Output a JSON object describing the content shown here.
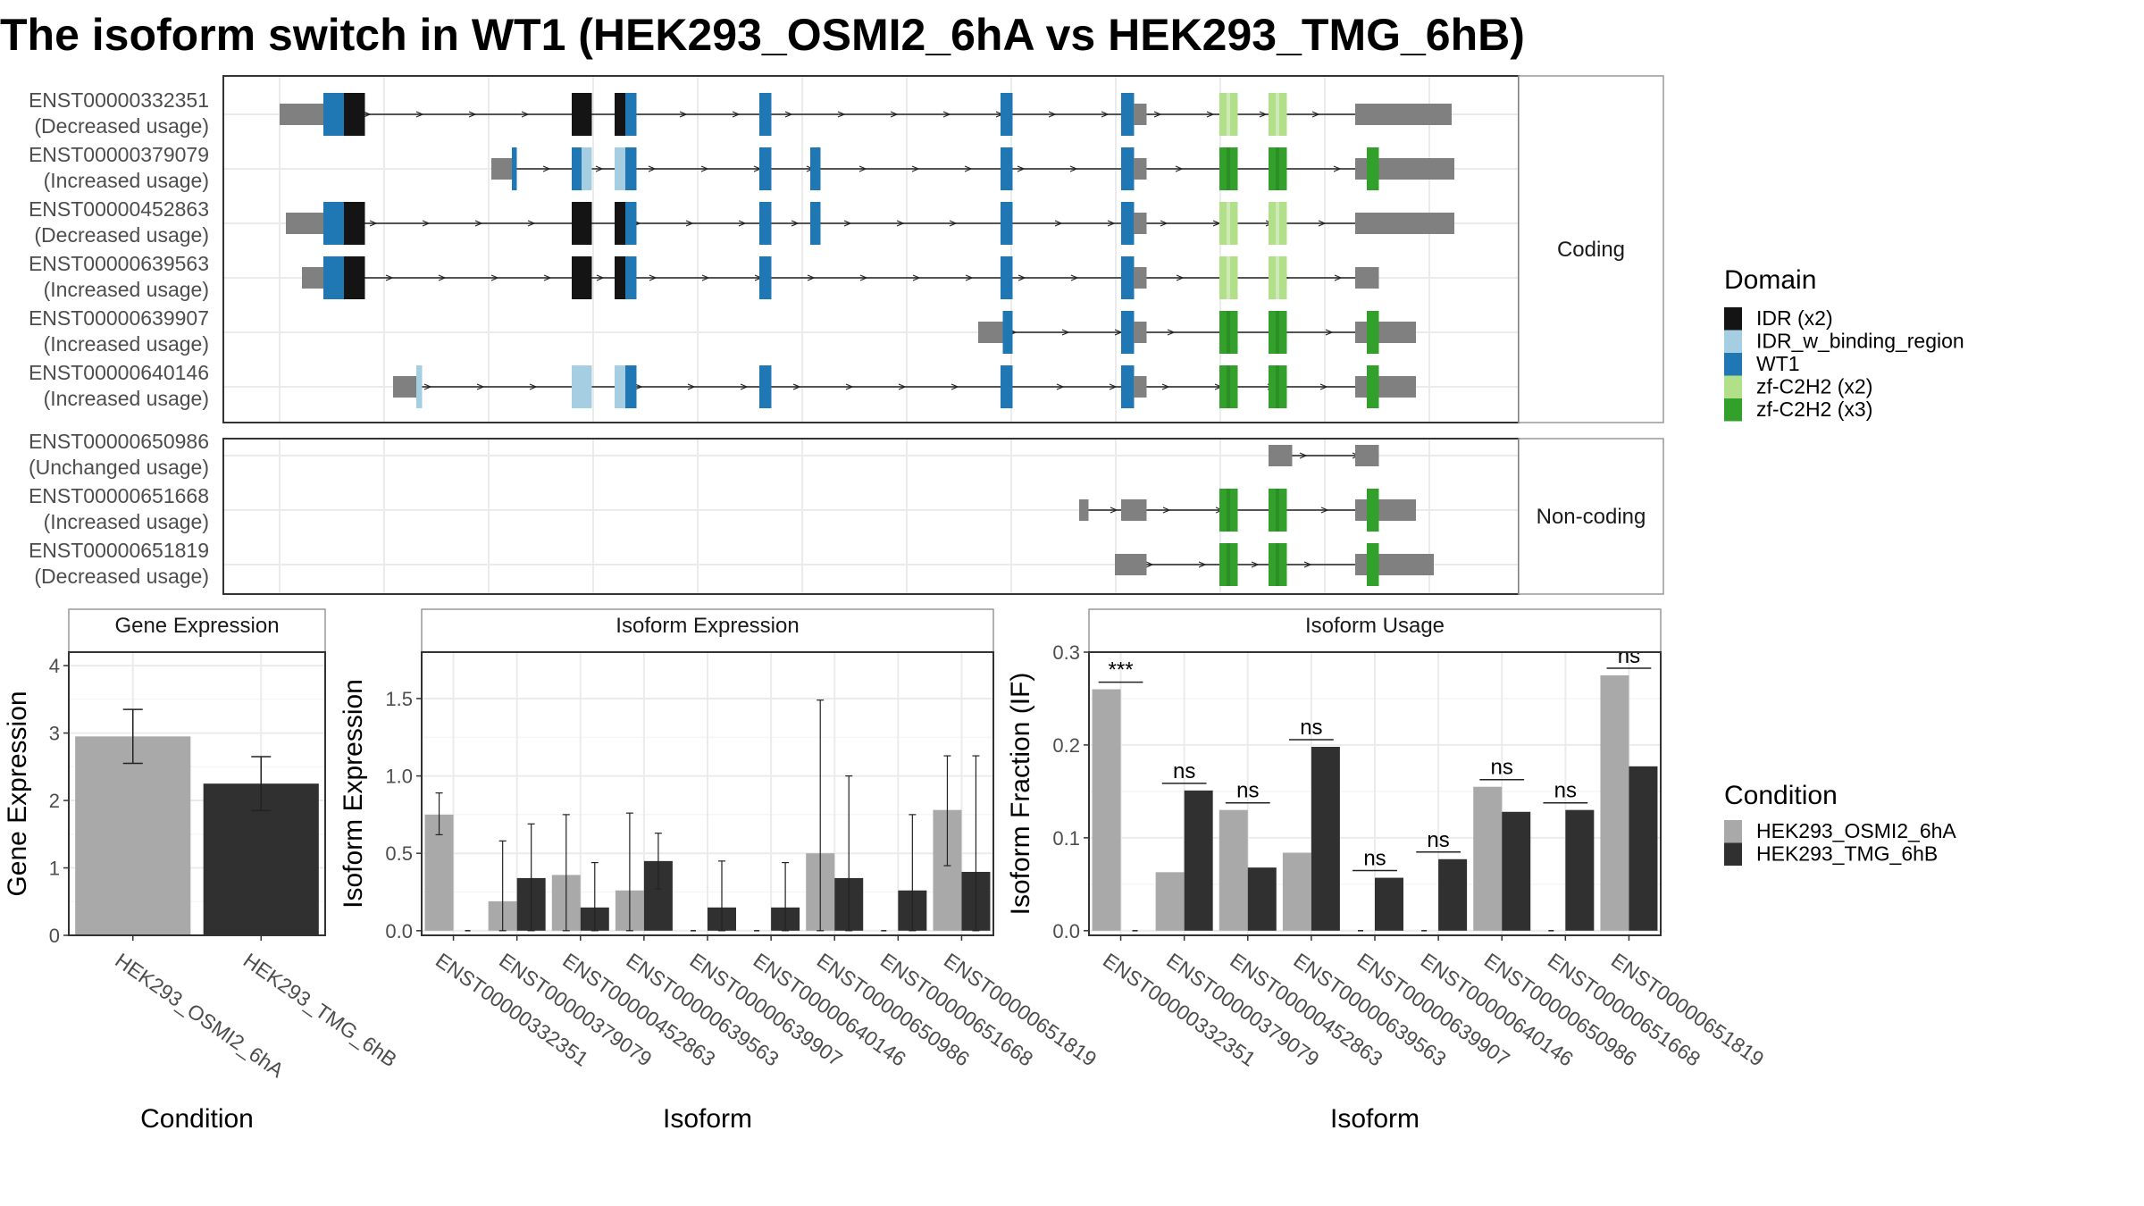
{
  "title": "The isoform switch in WT1 (HEK293_OSMI2_6hA vs HEK293_TMG_6hB)",
  "colors": {
    "IDR (x2)": "#141414",
    "IDR_w_binding_region": "#a6cee3",
    "WT1": "#1f78b4",
    "zf-C2H2 (x2)": "#b2df8a",
    "zf-C2H2 (x3)": "#33a02c",
    "utr": "#808080",
    "cond_a": "#a9a9a9",
    "cond_b": "#303030",
    "panel_border": "#333333",
    "strip_border": "#999999",
    "grid": "#ebebeb"
  },
  "panels": {
    "coding_label": "Coding",
    "noncoding_label": "Non-coding"
  },
  "transcripts": [
    {
      "id": "ENST00000332351",
      "usage": "(Decreased usage)",
      "group": "coding",
      "line": [
        313,
        1525
      ],
      "utr": [
        [
          313,
          362
        ],
        [
          1525,
          1625
        ]
      ],
      "exons": [
        {
          "x": [
            362,
            408
          ],
          "d": [
            "WT1",
            "IDR (x2)"
          ]
        },
        {
          "x": [
            640,
            662
          ],
          "d": [
            "IDR (x2)"
          ]
        },
        {
          "x": [
            688,
            712
          ],
          "d": [
            "IDR (x2)",
            "WT1"
          ]
        },
        {
          "x": [
            850,
            863
          ],
          "d": [
            "WT1"
          ]
        },
        {
          "x": [
            1120,
            1133
          ],
          "d": [
            "WT1"
          ]
        },
        {
          "x": [
            1255,
            1283
          ],
          "d": [
            "WT1",
            "utr"
          ]
        },
        {
          "x": [
            1365,
            1385
          ],
          "d": [
            "zf-C2H2 (x2)"
          ]
        },
        {
          "x": [
            1420,
            1440
          ],
          "d": [
            "zf-C2H2 (x2)"
          ]
        },
        {
          "x": [
            1517,
            1543
          ],
          "d": [
            "utr"
          ]
        }
      ]
    },
    {
      "id": "ENST00000379079",
      "usage": "(Increased usage)",
      "group": "coding",
      "line": [
        573,
        1525
      ],
      "utr": [
        [
          550,
          573
        ],
        [
          1525,
          1628
        ]
      ],
      "exons": [
        {
          "x": [
            573,
            578
          ],
          "d": [
            "WT1"
          ]
        },
        {
          "x": [
            640,
            662
          ],
          "d": [
            "WT1",
            "IDR_w_binding_region"
          ]
        },
        {
          "x": [
            688,
            712
          ],
          "d": [
            "IDR_w_binding_region",
            "WT1"
          ]
        },
        {
          "x": [
            850,
            863
          ],
          "d": [
            "WT1"
          ]
        },
        {
          "x": [
            907,
            918
          ],
          "d": [
            "WT1"
          ]
        },
        {
          "x": [
            1120,
            1133
          ],
          "d": [
            "WT1"
          ]
        },
        {
          "x": [
            1255,
            1283
          ],
          "d": [
            "WT1",
            "utr"
          ]
        },
        {
          "x": [
            1365,
            1385
          ],
          "d": [
            "zf-C2H2 (x3)"
          ]
        },
        {
          "x": [
            1420,
            1440
          ],
          "d": [
            "zf-C2H2 (x3)"
          ]
        },
        {
          "x": [
            1517,
            1543
          ],
          "d": [
            "utr",
            "zf-C2H2 (x3)"
          ]
        }
      ]
    },
    {
      "id": "ENST00000452863",
      "usage": "(Decreased usage)",
      "group": "coding",
      "line": [
        320,
        1525
      ],
      "utr": [
        [
          320,
          362
        ],
        [
          1525,
          1628
        ]
      ],
      "exons": [
        {
          "x": [
            362,
            408
          ],
          "d": [
            "WT1",
            "IDR (x2)"
          ]
        },
        {
          "x": [
            640,
            662
          ],
          "d": [
            "IDR (x2)"
          ]
        },
        {
          "x": [
            688,
            712
          ],
          "d": [
            "IDR (x2)",
            "WT1"
          ]
        },
        {
          "x": [
            850,
            863
          ],
          "d": [
            "WT1"
          ]
        },
        {
          "x": [
            907,
            918
          ],
          "d": [
            "WT1"
          ]
        },
        {
          "x": [
            1120,
            1133
          ],
          "d": [
            "WT1"
          ]
        },
        {
          "x": [
            1255,
            1283
          ],
          "d": [
            "WT1",
            "utr"
          ]
        },
        {
          "x": [
            1365,
            1385
          ],
          "d": [
            "zf-C2H2 (x2)"
          ]
        },
        {
          "x": [
            1420,
            1440
          ],
          "d": [
            "zf-C2H2 (x2)"
          ]
        },
        {
          "x": [
            1517,
            1543
          ],
          "d": [
            "utr"
          ]
        }
      ]
    },
    {
      "id": "ENST00000639563",
      "usage": "(Increased usage)",
      "group": "coding",
      "line": [
        338,
        1525
      ],
      "utr": [
        [
          338,
          362
        ]
      ],
      "exons": [
        {
          "x": [
            362,
            408
          ],
          "d": [
            "WT1",
            "IDR (x2)"
          ]
        },
        {
          "x": [
            640,
            662
          ],
          "d": [
            "IDR (x2)"
          ]
        },
        {
          "x": [
            688,
            712
          ],
          "d": [
            "IDR (x2)",
            "WT1"
          ]
        },
        {
          "x": [
            850,
            863
          ],
          "d": [
            "WT1"
          ]
        },
        {
          "x": [
            1120,
            1133
          ],
          "d": [
            "WT1"
          ]
        },
        {
          "x": [
            1255,
            1283
          ],
          "d": [
            "WT1",
            "utr"
          ]
        },
        {
          "x": [
            1365,
            1385
          ],
          "d": [
            "zf-C2H2 (x2)"
          ]
        },
        {
          "x": [
            1420,
            1440
          ],
          "d": [
            "zf-C2H2 (x2)"
          ]
        },
        {
          "x": [
            1517,
            1543
          ],
          "d": [
            "utr"
          ]
        }
      ]
    },
    {
      "id": "ENST00000639907",
      "usage": "(Increased usage)",
      "group": "coding",
      "line": [
        1095,
        1525
      ],
      "utr": [
        [
          1095,
          1112
        ],
        [
          1525,
          1585
        ]
      ],
      "exons": [
        {
          "x": [
            1112,
            1133
          ],
          "d": [
            "utr",
            "WT1"
          ]
        },
        {
          "x": [
            1255,
            1283
          ],
          "d": [
            "WT1",
            "utr"
          ]
        },
        {
          "x": [
            1365,
            1385
          ],
          "d": [
            "zf-C2H2 (x3)"
          ]
        },
        {
          "x": [
            1420,
            1440
          ],
          "d": [
            "zf-C2H2 (x3)"
          ]
        },
        {
          "x": [
            1517,
            1543
          ],
          "d": [
            "utr",
            "zf-C2H2 (x3)"
          ]
        }
      ]
    },
    {
      "id": "ENST00000640146",
      "usage": "(Increased usage)",
      "group": "coding",
      "line": [
        440,
        1525
      ],
      "utr": [
        [
          440,
          460
        ],
        [
          1525,
          1585
        ]
      ],
      "exons": [
        {
          "x": [
            460,
            472
          ],
          "d": [
            "utr",
            "IDR_w_binding_region"
          ]
        },
        {
          "x": [
            640,
            662
          ],
          "d": [
            "IDR_w_binding_region"
          ]
        },
        {
          "x": [
            688,
            712
          ],
          "d": [
            "IDR_w_binding_region",
            "WT1"
          ]
        },
        {
          "x": [
            850,
            863
          ],
          "d": [
            "WT1"
          ]
        },
        {
          "x": [
            1120,
            1133
          ],
          "d": [
            "WT1"
          ]
        },
        {
          "x": [
            1255,
            1283
          ],
          "d": [
            "WT1",
            "utr"
          ]
        },
        {
          "x": [
            1365,
            1385
          ],
          "d": [
            "zf-C2H2 (x3)"
          ]
        },
        {
          "x": [
            1420,
            1440
          ],
          "d": [
            "zf-C2H2 (x3)"
          ]
        },
        {
          "x": [
            1517,
            1543
          ],
          "d": [
            "utr",
            "zf-C2H2 (x3)"
          ]
        }
      ]
    },
    {
      "id": "ENST00000650986",
      "usage": "(Unchanged usage)",
      "group": "noncoding",
      "line": [
        1420,
        1543
      ],
      "utr": [],
      "exons": [
        {
          "x": [
            1420,
            1446
          ],
          "d": [
            "utr"
          ]
        },
        {
          "x": [
            1517,
            1543
          ],
          "d": [
            "utr"
          ]
        }
      ]
    },
    {
      "id": "ENST00000651668",
      "usage": "(Increased usage)",
      "group": "noncoding",
      "line": [
        1208,
        1525
      ],
      "utr": [
        [
          1525,
          1585
        ]
      ],
      "exons": [
        {
          "x": [
            1208,
            1218
          ],
          "d": [
            "utr"
          ]
        },
        {
          "x": [
            1255,
            1283
          ],
          "d": [
            "utr"
          ]
        },
        {
          "x": [
            1365,
            1385
          ],
          "d": [
            "zf-C2H2 (x3)"
          ]
        },
        {
          "x": [
            1420,
            1440
          ],
          "d": [
            "zf-C2H2 (x3)"
          ]
        },
        {
          "x": [
            1517,
            1543
          ],
          "d": [
            "utr",
            "zf-C2H2 (x3)"
          ]
        }
      ]
    },
    {
      "id": "ENST00000651819",
      "usage": "(Decreased usage)",
      "group": "noncoding",
      "line": [
        1248,
        1525
      ],
      "utr": [
        [
          1525,
          1605
        ]
      ],
      "exons": [
        {
          "x": [
            1248,
            1283
          ],
          "d": [
            "utr"
          ]
        },
        {
          "x": [
            1365,
            1385
          ],
          "d": [
            "zf-C2H2 (x3)"
          ]
        },
        {
          "x": [
            1420,
            1440
          ],
          "d": [
            "zf-C2H2 (x3)"
          ]
        },
        {
          "x": [
            1517,
            1543
          ],
          "d": [
            "utr",
            "zf-C2H2 (x3)"
          ]
        }
      ]
    }
  ],
  "domain_legend": {
    "title": "Domain",
    "items": [
      "IDR (x2)",
      "IDR_w_binding_region",
      "WT1",
      "zf-C2H2 (x2)",
      "zf-C2H2 (x3)"
    ]
  },
  "condition_legend": {
    "title": "Condition",
    "items": [
      "HEK293_OSMI2_6hA",
      "HEK293_TMG_6hB"
    ]
  },
  "chart_data": [
    {
      "type": "bar",
      "title": "Gene Expression",
      "xlabel": "Condition",
      "ylabel": "Gene Expression",
      "ylim": [
        0,
        4.2
      ],
      "yticks": [
        0,
        1,
        2,
        3,
        4
      ],
      "categories": [
        "HEK293_OSMI2_6hA",
        "HEK293_TMG_6hB"
      ],
      "values": [
        2.95,
        2.25
      ],
      "error": [
        [
          2.55,
          3.35
        ],
        [
          1.85,
          2.65
        ]
      ]
    },
    {
      "type": "bar",
      "title": "Isoform Expression",
      "xlabel": "Isoform",
      "ylabel": "Isoform Expression",
      "ylim": [
        -0.03,
        1.8
      ],
      "yticks": [
        0.0,
        0.5,
        1.0,
        1.5
      ],
      "ytick_labels": [
        "0.0",
        "0.5",
        "1.0",
        "1.5"
      ],
      "categories": [
        "ENST00000332351",
        "ENST00000379079",
        "ENST00000452863",
        "ENST00000639563",
        "ENST00000639907",
        "ENST00000640146",
        "ENST00000650986",
        "ENST00000651668",
        "ENST00000651819"
      ],
      "series": [
        {
          "name": "HEK293_OSMI2_6hA",
          "values": [
            0.75,
            0.19,
            0.36,
            0.26,
            0.0,
            0.0,
            0.5,
            0.0,
            0.78
          ],
          "error": [
            [
              0.62,
              0.89
            ],
            [
              0.0,
              0.58
            ],
            [
              0.0,
              0.75
            ],
            [
              0.0,
              0.76
            ],
            null,
            null,
            [
              0.0,
              1.49
            ],
            null,
            [
              0.42,
              1.13
            ]
          ]
        },
        {
          "name": "HEK293_TMG_6hB",
          "values": [
            0.0,
            0.34,
            0.15,
            0.45,
            0.15,
            0.15,
            0.34,
            0.26,
            0.38
          ],
          "error": [
            null,
            [
              0.0,
              0.69
            ],
            [
              0.0,
              0.44
            ],
            [
              0.27,
              0.63
            ],
            [
              0.0,
              0.45
            ],
            [
              0.0,
              0.44
            ],
            [
              0.0,
              1.0
            ],
            [
              0.0,
              0.75
            ],
            [
              0.0,
              1.13
            ]
          ]
        }
      ]
    },
    {
      "type": "bar",
      "title": "Isoform Usage",
      "xlabel": "Isoform",
      "ylabel": "Isoform Fraction (IF)",
      "ylim": [
        -0.005,
        0.3
      ],
      "yticks": [
        0.0,
        0.1,
        0.2,
        0.3
      ],
      "ytick_labels": [
        "0.0",
        "0.1",
        "0.2",
        "0.3"
      ],
      "categories": [
        "ENST00000332351",
        "ENST00000379079",
        "ENST00000452863",
        "ENST00000639563",
        "ENST00000639907",
        "ENST00000640146",
        "ENST00000650986",
        "ENST00000651668",
        "ENST00000651819"
      ],
      "series": [
        {
          "name": "HEK293_OSMI2_6hA",
          "values": [
            0.26,
            0.063,
            0.13,
            0.084,
            0.0,
            0.0,
            0.155,
            0.0,
            0.275
          ]
        },
        {
          "name": "HEK293_TMG_6hB",
          "values": [
            0.0,
            0.151,
            0.068,
            0.198,
            0.057,
            0.077,
            0.128,
            0.13,
            0.177
          ]
        }
      ],
      "significance": [
        "***",
        "ns",
        "ns",
        "ns",
        "ns",
        "ns",
        "ns",
        "ns",
        "ns"
      ]
    }
  ]
}
